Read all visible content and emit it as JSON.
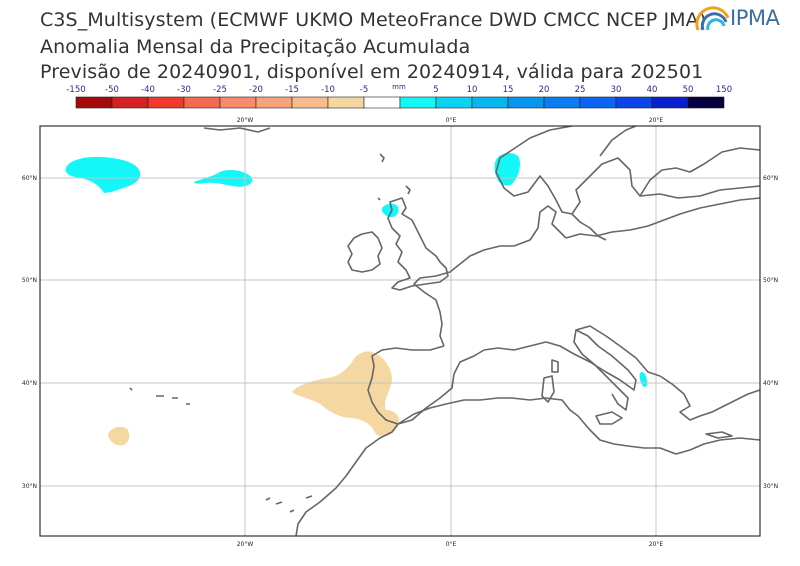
{
  "title": {
    "line1": "C3S_Multisystem  (ECMWF UKMO MeteoFrance DWD CMCC NCEP JMA)",
    "line2": "Anomalia Mensal da Precipitação Acumulada",
    "line3": "Previsão de 20240901, disponível em 20240914, válida para 202501"
  },
  "logo": {
    "text": "IPMA"
  },
  "colorbar": {
    "unit": "mm",
    "tick_labels": [
      "-150",
      "-50",
      "-40",
      "-30",
      "-25",
      "-20",
      "-15",
      "-10",
      "-5",
      "5",
      "10",
      "15",
      "20",
      "25",
      "30",
      "40",
      "50",
      "150"
    ],
    "colors": [
      "#a50a0a",
      "#d42121",
      "#f0392b",
      "#f36a50",
      "#f88a6b",
      "#f9a37c",
      "#fbbb8c",
      "#f5d7a1",
      "#ffffff",
      "#13f7f9",
      "#09d2f3",
      "#06b6f0",
      "#0696ee",
      "#0a7ef0",
      "#0b64f3",
      "#0a45ec",
      "#0920cf",
      "#050040"
    ]
  },
  "map": {
    "x_ticks": [
      "20°W",
      "0°E",
      "20°E"
    ],
    "y_ticks": [
      "60°N",
      "50°N",
      "40°N",
      "30°N"
    ]
  }
}
